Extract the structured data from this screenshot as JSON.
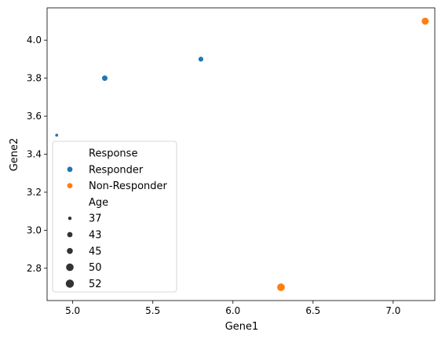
{
  "chart_data": {
    "type": "scatter",
    "xlabel": "Gene1",
    "ylabel": "Gene2",
    "xlim": [
      4.84,
      7.26
    ],
    "ylim": [
      2.63,
      4.17
    ],
    "xticks": [
      "5.0",
      "5.5",
      "6.0",
      "6.5",
      "7.0"
    ],
    "yticks": [
      "2.8",
      "3.0",
      "3.2",
      "3.4",
      "3.6",
      "3.8",
      "4.0"
    ],
    "hue_title": "Response",
    "size_title": "Age",
    "series": [
      {
        "name": "Responder",
        "color": "#1f77b4",
        "points": [
          {
            "x": 4.9,
            "y": 3.5,
            "age": 37
          },
          {
            "x": 5.2,
            "y": 3.8,
            "age": 45
          },
          {
            "x": 5.8,
            "y": 3.9,
            "age": 43
          }
        ]
      },
      {
        "name": "Non-Responder",
        "color": "#ff7f0e",
        "points": [
          {
            "x": 7.2,
            "y": 4.1,
            "age": 50
          },
          {
            "x": 6.3,
            "y": 2.7,
            "age": 52
          }
        ]
      }
    ],
    "size_legend": [
      37,
      43,
      45,
      50,
      52
    ],
    "legend_position": "lower-left",
    "grid": false
  }
}
